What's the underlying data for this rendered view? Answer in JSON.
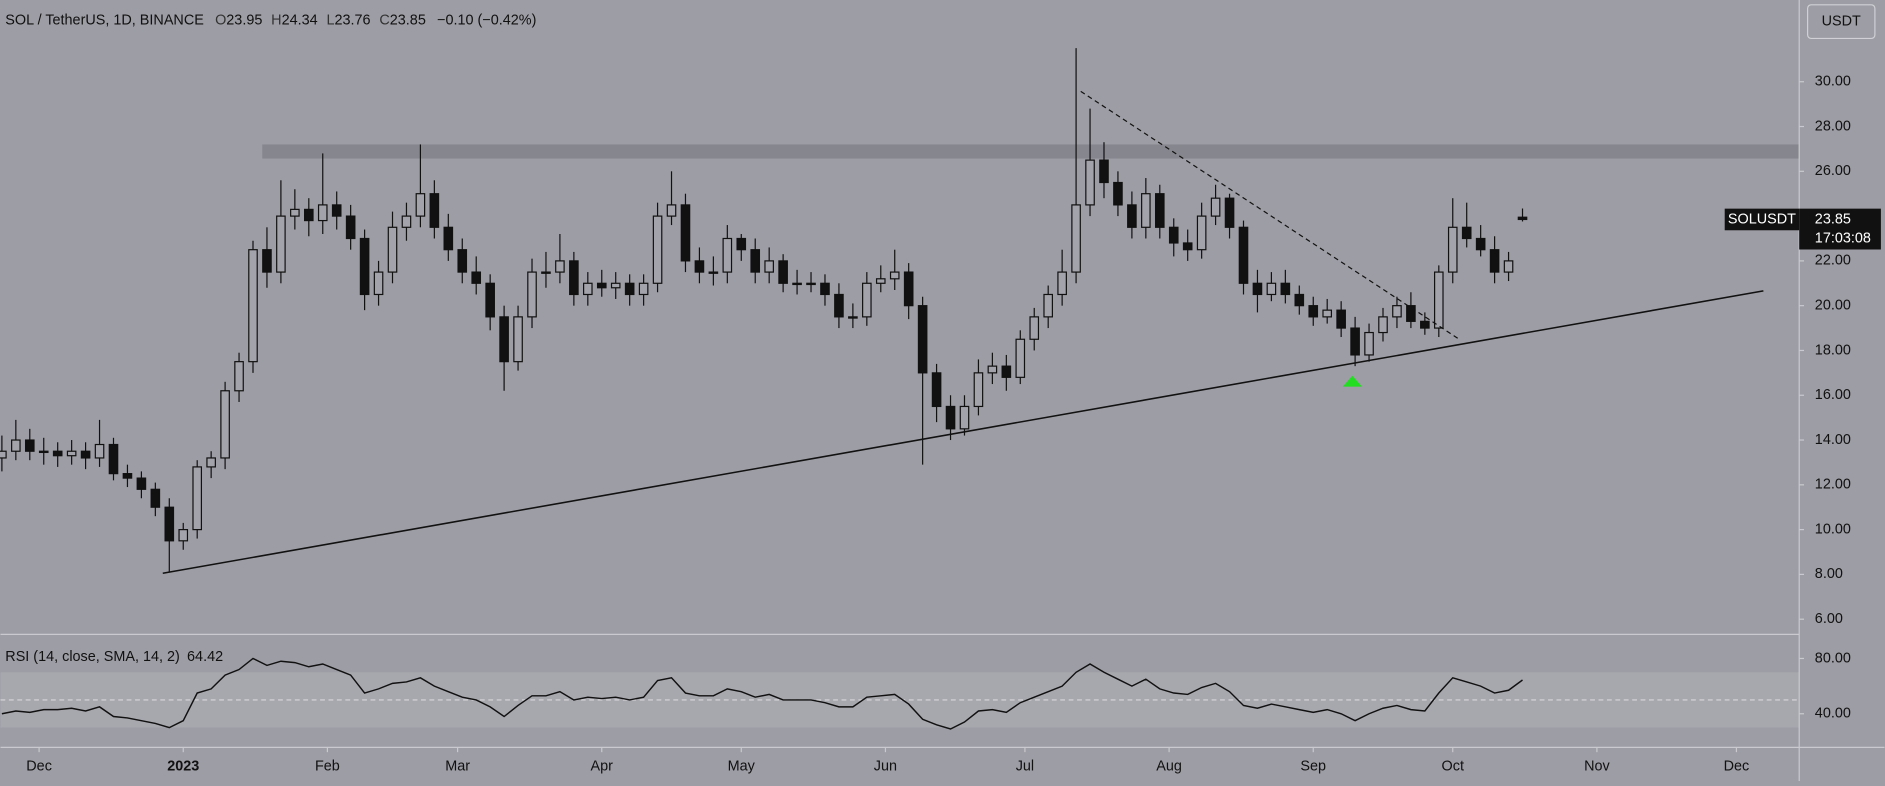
{
  "chart_data": {
    "type": "candlestick",
    "title": "SOL / TetherUS, 1D, BINANCE",
    "ohlc_labels": [
      "O",
      "H",
      "L",
      "C"
    ],
    "change": "−0.10 (−0.42%)",
    "currency": "USDT",
    "symbol": "SOLUSDT",
    "countdown": "17:03:08",
    "background": "#9d9da5",
    "up_color": "#a3a3ab",
    "down_color": "#111111",
    "x": [
      -39,
      -36,
      -33,
      -30,
      -27,
      -24,
      -21,
      -18,
      -15,
      -12,
      -9,
      -6,
      -3,
      0,
      3,
      6,
      9,
      12,
      15,
      18,
      21,
      24,
      27,
      30,
      33,
      36,
      39,
      42,
      45,
      48,
      51,
      54,
      57,
      60,
      63,
      66,
      69,
      72,
      75,
      78,
      81,
      84,
      87,
      90,
      93,
      96,
      99,
      102,
      105,
      108,
      111,
      114,
      117,
      120,
      123,
      126,
      129,
      132,
      135,
      138,
      141,
      144,
      147,
      150,
      153,
      156,
      159,
      162,
      165,
      168,
      171,
      174,
      177,
      180,
      183,
      186,
      189,
      192,
      195,
      198,
      201,
      204,
      207,
      210,
      213,
      216,
      219,
      222,
      225,
      228,
      231,
      234,
      237,
      240,
      243,
      246,
      249,
      252,
      255,
      258,
      261,
      264,
      267,
      270,
      273,
      276,
      279,
      282,
      285,
      288
    ],
    "open": [
      13.2,
      13.5,
      14,
      13.5,
      13.5,
      13.3,
      13.5,
      13.2,
      13.8,
      12.5,
      12.3,
      11.8,
      11,
      9.5,
      10,
      12.8,
      13.2,
      16.2,
      17.5,
      22.5,
      21.5,
      24,
      24.3,
      23.8,
      24.5,
      24,
      23,
      20.5,
      21.5,
      23.5,
      24,
      25,
      23.5,
      22.5,
      21.5,
      21,
      19.5,
      17.5,
      19.5,
      21.5,
      21.5,
      22,
      20.5,
      21,
      20.8,
      21,
      20.5,
      21,
      24,
      24.5,
      22,
      21.5,
      21.5,
      23,
      22.5,
      21.5,
      22,
      21,
      21,
      21,
      20.5,
      19.5,
      19.5,
      21,
      21.2,
      21.5,
      20,
      17,
      15.5,
      14.5,
      15.5,
      17,
      17.3,
      16.8,
      18.5,
      19.5,
      20.5,
      21.5,
      24.5,
      26.5,
      25.5,
      24.5,
      23.5,
      25,
      23.5,
      22.8,
      22.5,
      24,
      24.8,
      23.5,
      21,
      20.5,
      21,
      20.5,
      20,
      19.5,
      19.8,
      19,
      17.8,
      18.8,
      19.5,
      20,
      19.3,
      19,
      21.5,
      23.5,
      23,
      22.5,
      21.5,
      23.95
    ],
    "high": [
      14.2,
      14.9,
      14.5,
      14.1,
      13.9,
      14,
      13.9,
      14.9,
      14.1,
      12.9,
      12.6,
      12.1,
      11.4,
      10.3,
      13.1,
      13.5,
      16.6,
      17.9,
      22.9,
      23.5,
      25.6,
      25.2,
      24.8,
      26.8,
      25.1,
      24.5,
      23.4,
      22,
      24.2,
      24.6,
      27.2,
      25.6,
      24.1,
      23,
      22.2,
      21.4,
      20,
      20,
      22.1,
      22.4,
      23.2,
      22.4,
      21.5,
      21.6,
      21.5,
      21.4,
      21.4,
      24.6,
      26,
      25,
      22.6,
      22.2,
      23.6,
      23.2,
      23,
      22.6,
      22.3,
      21.6,
      21.5,
      21.4,
      21,
      20.1,
      21.5,
      21.8,
      22.5,
      21.9,
      20.4,
      17.4,
      16,
      16,
      17.6,
      17.9,
      17.8,
      18.9,
      19.9,
      20.9,
      22.5,
      31.5,
      28.8,
      27.3,
      26,
      25.1,
      25.7,
      25.4,
      23.9,
      23.4,
      24.6,
      25.4,
      25,
      23.8,
      21.6,
      21.5,
      21.6,
      20.9,
      20.4,
      20.3,
      20.2,
      19.5,
      19.2,
      19.9,
      20.4,
      20.6,
      19.7,
      21.8,
      24.8,
      24.6,
      23.6,
      23.1,
      22.4,
      24.34
    ],
    "low": [
      12.6,
      13.1,
      13.1,
      12.9,
      12.8,
      12.9,
      12.7,
      12.8,
      12.2,
      11.9,
      11.4,
      10.6,
      8.1,
      9.1,
      9.6,
      12.3,
      12.7,
      15.7,
      17,
      20.8,
      21,
      23.4,
      23.1,
      23.2,
      23.4,
      22.5,
      19.8,
      20,
      21,
      22.9,
      23.5,
      23,
      22,
      21,
      20.5,
      18.9,
      16.2,
      17.1,
      19,
      20.8,
      21,
      20,
      20,
      20.4,
      20.3,
      20,
      20,
      20.6,
      23.6,
      21.5,
      21,
      20.9,
      21,
      22,
      21,
      21,
      20.6,
      20.5,
      20.6,
      20,
      19,
      19,
      19.1,
      20.6,
      20.7,
      19.4,
      12.9,
      14.8,
      14,
      14.2,
      15.1,
      16.5,
      16.2,
      16.5,
      18,
      19,
      20,
      21,
      24,
      24.8,
      24,
      23,
      23,
      23,
      22.2,
      22,
      22.1,
      23.6,
      23,
      20.5,
      19.7,
      20.2,
      20.1,
      19.6,
      19.1,
      19.2,
      18.6,
      17.3,
      17.5,
      18.4,
      19,
      19,
      18.7,
      18.6,
      21,
      22.6,
      22.2,
      21,
      21.1,
      23.76
    ],
    "close": [
      13.5,
      14,
      13.5,
      13.5,
      13.3,
      13.5,
      13.2,
      13.8,
      12.5,
      12.3,
      11.8,
      11,
      9.5,
      10,
      12.8,
      13.2,
      16.2,
      17.5,
      22.5,
      21.5,
      24,
      24.3,
      23.8,
      24.5,
      24,
      23,
      20.5,
      21.5,
      23.5,
      24,
      25,
      23.5,
      22.5,
      21.5,
      21,
      19.5,
      17.5,
      19.5,
      21.5,
      21.5,
      22,
      20.5,
      21,
      20.8,
      21,
      20.5,
      21,
      24,
      24.5,
      22,
      21.5,
      21.5,
      23,
      22.5,
      21.5,
      22,
      21,
      21,
      21,
      20.5,
      19.5,
      19.5,
      21,
      21.2,
      21.5,
      20,
      17,
      15.5,
      14.5,
      15.5,
      17,
      17.3,
      16.8,
      18.5,
      19.5,
      20.5,
      21.5,
      24.5,
      26.5,
      25.5,
      24.5,
      23.5,
      25,
      23.5,
      22.8,
      22.5,
      24,
      24.8,
      23.5,
      21,
      20.5,
      21,
      20.5,
      20,
      19.5,
      19.8,
      19,
      17.8,
      18.8,
      19.5,
      20,
      19.3,
      19,
      21.5,
      23.5,
      23,
      22.5,
      21.5,
      22,
      23.85
    ],
    "xlim": [
      -39.3,
      347.5
    ],
    "xticks": [
      {
        "value": -31,
        "label": "Dec"
      },
      {
        "value": 0,
        "label": "2023"
      },
      {
        "value": 31,
        "label": "Feb"
      },
      {
        "value": 59,
        "label": "Mar"
      },
      {
        "value": 90,
        "label": "Apr"
      },
      {
        "value": 120,
        "label": "May"
      },
      {
        "value": 151,
        "label": "Jun"
      },
      {
        "value": 181,
        "label": "Jul"
      },
      {
        "value": 212,
        "label": "Aug"
      },
      {
        "value": 243,
        "label": "Sep"
      },
      {
        "value": 273,
        "label": "Oct"
      },
      {
        "value": 304,
        "label": "Nov"
      },
      {
        "value": 334,
        "label": "Dec"
      }
    ],
    "ylim": [
      5.32,
      33.65
    ],
    "yticks": [
      {
        "value": 6,
        "label": "6.00"
      },
      {
        "value": 8,
        "label": "8.00"
      },
      {
        "value": 10,
        "label": "10.00"
      },
      {
        "value": 12,
        "label": "12.00"
      },
      {
        "value": 14,
        "label": "14.00"
      },
      {
        "value": 16,
        "label": "16.00"
      },
      {
        "value": 18,
        "label": "18.00"
      },
      {
        "value": 20,
        "label": "20.00"
      },
      {
        "value": 22,
        "label": "22.00"
      },
      {
        "value": 24,
        "label": "24.00"
      },
      {
        "value": 26,
        "label": "26.00"
      },
      {
        "value": 28,
        "label": "28.00"
      },
      {
        "value": 30,
        "label": "30.00"
      }
    ],
    "trendlines": [
      {
        "x": [
          -4.4,
          339.8
        ],
        "y": [
          8.05,
          20.66
        ],
        "dashed": false
      },
      {
        "x": [
          193,
          274.7
        ],
        "y": [
          29.57,
          18.46
        ],
        "dashed": true
      }
    ],
    "zone": {
      "x": 17,
      "y": [
        26.57,
        27.2
      ],
      "color": "#86868e"
    },
    "markers": [
      {
        "x": 251.4,
        "y": 16.6,
        "color": "#22dd22"
      }
    ],
    "rsi": {
      "title": "RSI (14, close, SMA, 14, 2)",
      "values": [
        40,
        42,
        41,
        43,
        43,
        44,
        42,
        45,
        38,
        37,
        35,
        33,
        30,
        35,
        55,
        58,
        68,
        72,
        80,
        75,
        78,
        77,
        74,
        76,
        72,
        68,
        55,
        58,
        62,
        63,
        66,
        60,
        56,
        52,
        50,
        45,
        38,
        46,
        53,
        53,
        56,
        50,
        52,
        51,
        52,
        50,
        52,
        64,
        66,
        55,
        53,
        53,
        58,
        56,
        52,
        54,
        50,
        50,
        50,
        48,
        45,
        45,
        52,
        53,
        54,
        47,
        36,
        32,
        29,
        34,
        42,
        43,
        41,
        48,
        52,
        56,
        60,
        70,
        76,
        70,
        65,
        60,
        65,
        58,
        55,
        54,
        59,
        62,
        56,
        46,
        44,
        47,
        45,
        43,
        41,
        43,
        40,
        35,
        40,
        44,
        46,
        43,
        42,
        55,
        66,
        63,
        60,
        55,
        57,
        64.42
      ],
      "ylim": [
        15.7,
        97.4
      ],
      "yticks": [
        {
          "value": 40,
          "label": "40.00"
        },
        {
          "value": 80,
          "label": "80.00"
        }
      ],
      "band": [
        30,
        70
      ],
      "mid": 50,
      "color": "#111111"
    }
  }
}
